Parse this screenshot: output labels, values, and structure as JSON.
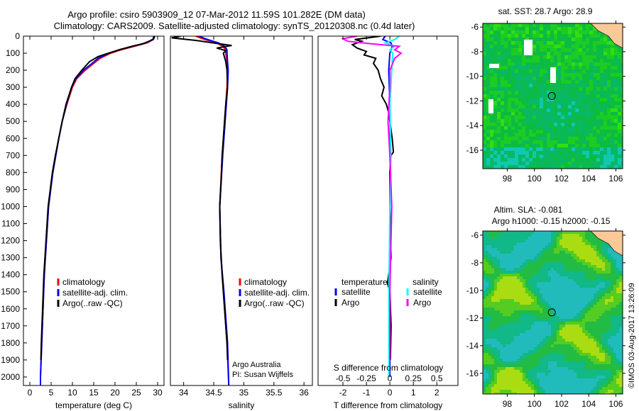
{
  "title_line1": "Argo profile: csiro 5903909_12 07-Mar-2012 11.59S 101.282E (DM data)",
  "title_line2": "Climatology: CARS2009. Satellite-adjusted climatology: synTS_20120308.nc (0.4d later)",
  "credit": "©IMOS 03-Aug-2017 13:26:09",
  "attribution": {
    "line1": "Argo Australia",
    "line2": "PI: Susan Wijffels"
  },
  "colors": {
    "climatology": "#ff0000",
    "satellite": "#0000ff",
    "argo": "#000000",
    "sal_satellite": "#00ffff",
    "sal_argo": "#ff00ff",
    "land": "#f9c998"
  },
  "chart_data": [
    {
      "type": "line",
      "name": "temperature",
      "xlabel": "temperature (deg C)",
      "ylabel": "",
      "xlim": [
        -1.5,
        31.5
      ],
      "ylim": [
        2050,
        0
      ],
      "xticks": [
        0,
        5,
        10,
        15,
        20,
        25,
        30
      ],
      "yticks": [
        0,
        100,
        200,
        300,
        400,
        500,
        600,
        700,
        800,
        900,
        1000,
        1100,
        1200,
        1300,
        1400,
        1500,
        1600,
        1700,
        1800,
        1900,
        2000
      ],
      "legend": [
        "climatology",
        "satellite-adj. clim.",
        "Argo(..raw -QC)"
      ],
      "series": [
        {
          "name": "climatology",
          "color": "#ff0000",
          "depth": [
            0,
            20,
            40,
            60,
            80,
            100,
            130,
            160,
            200,
            250,
            300,
            400,
            500,
            600,
            700,
            800,
            900,
            1000,
            1200,
            1400,
            1600,
            1800,
            2000,
            2050
          ],
          "values": [
            29.2,
            29,
            27.5,
            24.5,
            21.5,
            19,
            16.5,
            15,
            13,
            11,
            10,
            8.7,
            7.6,
            6.8,
            6.1,
            5.4,
            4.9,
            4.4,
            3.9,
            3.4,
            3.1,
            2.8,
            2.5,
            2.5
          ]
        },
        {
          "name": "satellite-adj. clim.",
          "color": "#0000ff",
          "depth": [
            0,
            20,
            40,
            60,
            80,
            100,
            130,
            160,
            200,
            250,
            300,
            400,
            500,
            600,
            700,
            800,
            900,
            1000,
            1200,
            1400,
            1600,
            1800,
            2000,
            2050
          ],
          "values": [
            29.1,
            28.9,
            27.2,
            24,
            21,
            18.6,
            16,
            14.6,
            12.6,
            10.8,
            9.8,
            8.6,
            7.6,
            6.8,
            6.1,
            5.4,
            4.9,
            4.4,
            3.9,
            3.4,
            3.1,
            2.8,
            2.5,
            2.5
          ]
        },
        {
          "name": "Argo(..raw -QC)",
          "color": "#000000",
          "depth": [
            0,
            15,
            30,
            45,
            60,
            80,
            100,
            120,
            150,
            200,
            250,
            300,
            400,
            500,
            600,
            700,
            800,
            900,
            1000,
            1200,
            1400,
            1600,
            1800,
            1900
          ],
          "values": [
            29.3,
            29.1,
            28,
            26.5,
            24,
            21,
            18.5,
            16,
            14,
            12.2,
            10.6,
            9.8,
            8.5,
            7.6,
            6.8,
            6,
            5.3,
            4.8,
            4.3,
            3.8,
            3.3,
            3,
            2.7,
            2.6
          ]
        }
      ]
    },
    {
      "type": "line",
      "name": "salinity",
      "xlabel": "salinity",
      "xlim": [
        33.78,
        36.14
      ],
      "ylim": [
        2050,
        0
      ],
      "xticks": [
        34,
        34.5,
        35,
        35.5,
        36
      ],
      "legend": [
        "climatology",
        "satellite-adj. clim.",
        "Argo(..raw -QC)"
      ],
      "series": [
        {
          "name": "climatology",
          "color": "#ff0000",
          "depth": [
            0,
            20,
            40,
            60,
            80,
            100,
            150,
            200,
            300,
            500,
            700,
            1000,
            1300,
            1500,
            1800,
            2050
          ],
          "values": [
            34.2,
            34.35,
            34.55,
            34.65,
            34.7,
            34.7,
            34.72,
            34.73,
            34.72,
            34.68,
            34.64,
            34.6,
            34.62,
            34.66,
            34.72,
            34.75
          ]
        },
        {
          "name": "satellite-adj. clim.",
          "color": "#0000ff",
          "depth": [
            0,
            20,
            40,
            60,
            80,
            100,
            150,
            200,
            300,
            500,
            700,
            1000,
            1300,
            1500,
            1800,
            2050
          ],
          "values": [
            34.25,
            34.4,
            34.58,
            34.68,
            34.72,
            34.72,
            34.73,
            34.74,
            34.73,
            34.69,
            34.65,
            34.6,
            34.62,
            34.67,
            34.73,
            34.75
          ]
        },
        {
          "name": "Argo(..raw -QC)",
          "color": "#000000",
          "depth": [
            0,
            10,
            25,
            40,
            55,
            70,
            85,
            100,
            150,
            200,
            300,
            400,
            500,
            600,
            700,
            800,
            1000,
            1200,
            1400,
            1600,
            1800,
            1900
          ],
          "values": [
            33.95,
            33.8,
            34.2,
            34.5,
            34.8,
            34.55,
            34.7,
            34.66,
            34.7,
            34.72,
            34.73,
            34.7,
            34.68,
            34.66,
            34.64,
            34.63,
            34.6,
            34.61,
            34.64,
            34.68,
            34.72,
            34.73
          ]
        }
      ]
    },
    {
      "type": "line",
      "name": "difference",
      "xlabel": "T difference from climatology",
      "x2label": "S difference from climatology",
      "xlim": [
        -3.06,
        2.9
      ],
      "ylim": [
        2050,
        0
      ],
      "xticks": [
        -2,
        -1,
        0,
        1,
        2
      ],
      "x2ticks": [
        "-0.5",
        "-0.25",
        "0",
        "0.25",
        "0.5"
      ],
      "x2tick_values": [
        -0.5,
        -0.25,
        0,
        0.25,
        0.5
      ],
      "legend_headers": [
        "temperature",
        "salinity"
      ],
      "legend": [
        "satellite",
        "Argo",
        "satellite",
        "Argo"
      ],
      "series": [
        {
          "name": "T satellite",
          "color": "#0000ff",
          "axis": "T",
          "depth": [
            0,
            20,
            40,
            60,
            100,
            200,
            400,
            700,
            1000,
            1500,
            2000
          ],
          "values": [
            -0.2,
            -0.3,
            0.05,
            0.1,
            0,
            -0.05,
            0,
            0.02,
            0,
            0,
            0
          ]
        },
        {
          "name": "T Argo",
          "color": "#000000",
          "axis": "T",
          "depth": [
            0,
            20,
            30,
            50,
            70,
            90,
            110,
            130,
            160,
            200,
            250,
            300,
            350,
            400,
            450,
            500,
            600,
            680,
            700,
            800,
            1000,
            1300,
            1450,
            1500,
            1700,
            1900
          ],
          "values": [
            -0.4,
            -1.5,
            -1.2,
            -1.6,
            -1.4,
            -1.0,
            -1.1,
            -0.6,
            -0.7,
            -0.5,
            -0.4,
            -0.25,
            -0.35,
            -0.15,
            -0.05,
            0,
            0.1,
            0.15,
            0.05,
            0,
            0,
            0.05,
            -0.1,
            0,
            0.05,
            0.02
          ]
        },
        {
          "name": "S satellite",
          "color": "#00ffff",
          "axis": "S",
          "depth": [
            0,
            20,
            40,
            60,
            80,
            100,
            200,
            400,
            700,
            1000,
            1500,
            2000
          ],
          "values": [
            0.1,
            0.05,
            -0.05,
            0.05,
            0.0,
            0.03,
            0.02,
            0,
            0.01,
            0,
            -0.01,
            -0.01
          ]
        },
        {
          "name": "S Argo",
          "color": "#ff00ff",
          "axis": "S",
          "depth": [
            0,
            15,
            30,
            45,
            60,
            80,
            100,
            130,
            160,
            200,
            300,
            500,
            700,
            1000,
            1500,
            1900
          ],
          "values": [
            -0.35,
            -0.5,
            -0.45,
            -0.2,
            0.1,
            0.05,
            0.12,
            0.05,
            0.03,
            0.0,
            0.0,
            -0.02,
            0.0,
            0.02,
            0.0,
            0.0
          ]
        }
      ]
    },
    {
      "type": "heatmap",
      "name": "sst-map",
      "title": "sat. SST: 28.7 Argo: 28.9",
      "xlim": [
        96.2,
        106.5
      ],
      "ylim": [
        -17.5,
        -5.7
      ],
      "xticks": [
        98,
        100,
        102,
        104,
        106
      ],
      "yticks": [
        -6,
        -8,
        -10,
        -12,
        -14,
        -16
      ],
      "marker": {
        "lon": 101.282,
        "lat": -11.59
      }
    },
    {
      "type": "heatmap",
      "name": "sla-map",
      "title": "Altim. SLA: -0.081",
      "subtitle": "Argo h1000: -0.15 h2000: -0.15",
      "xlim": [
        96.2,
        106.5
      ],
      "ylim": [
        -17.5,
        -5.7
      ],
      "xticks": [
        98,
        100,
        102,
        104,
        106
      ],
      "yticks": [
        -6,
        -8,
        -10,
        -12,
        -14,
        -16
      ],
      "marker": {
        "lon": 101.282,
        "lat": -11.59
      }
    }
  ]
}
